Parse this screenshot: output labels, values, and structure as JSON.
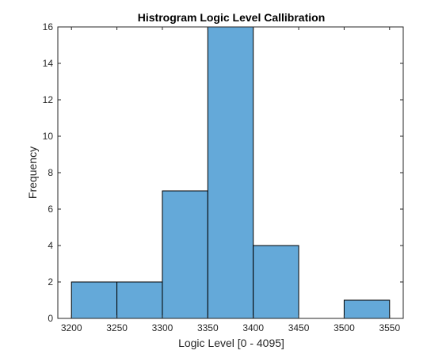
{
  "chart_data": {
    "type": "bar",
    "title": "Histrogram Logic Level Callibration",
    "xlabel": "Logic Level [0 - 4095]",
    "ylabel": "Frequency",
    "bin_edges": [
      3200,
      3250,
      3300,
      3350,
      3400,
      3450,
      3500,
      3550
    ],
    "values": [
      2,
      2,
      7,
      16,
      4,
      0,
      1
    ],
    "xlim": [
      3185,
      3565
    ],
    "ylim": [
      0,
      16
    ],
    "xticks": [
      3200,
      3250,
      3300,
      3350,
      3400,
      3450,
      3500,
      3550
    ],
    "yticks": [
      0,
      2,
      4,
      6,
      8,
      10,
      12,
      14,
      16
    ],
    "grid": false,
    "bar_color": "#64a9d9",
    "edge_color": "#000000"
  }
}
